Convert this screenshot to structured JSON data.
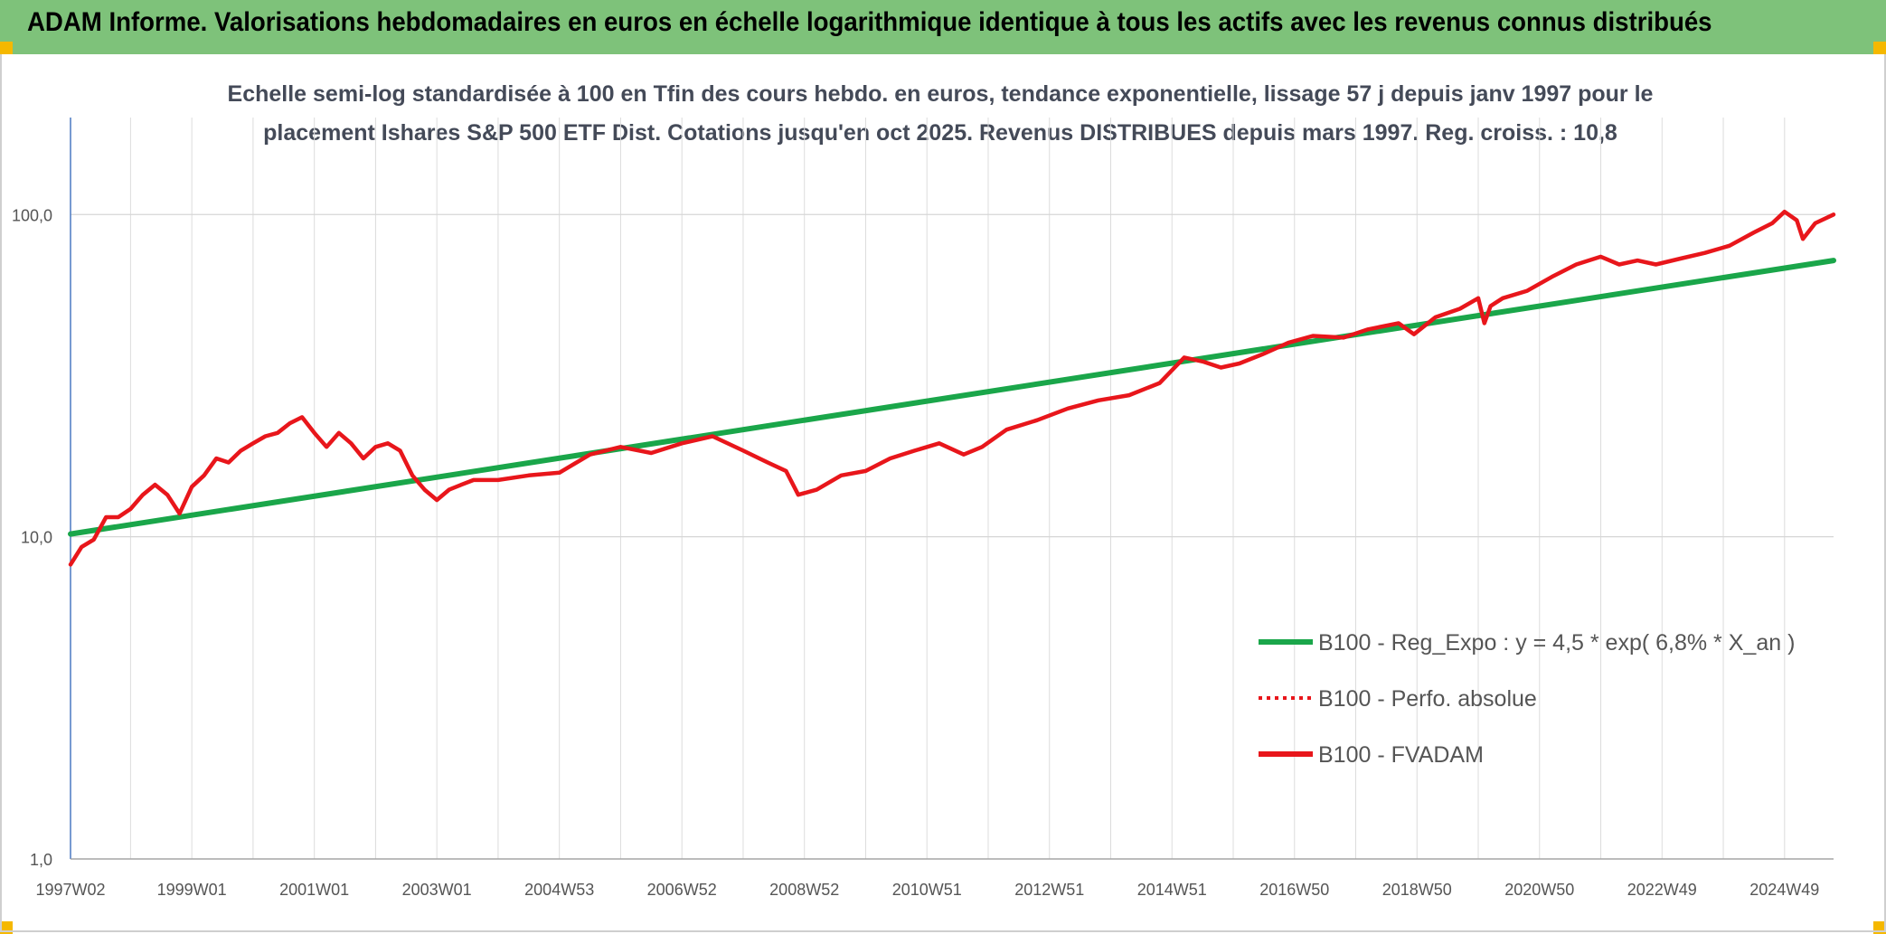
{
  "header": {
    "title": "ADAM Informe. Valorisations hebdomadaires en euros en échelle logarithmique identique à tous les actifs avec les revenus connus distribués"
  },
  "chart_data": {
    "type": "line",
    "title_line1": "Echelle semi-log standardisée à 100 en Tfin des cours hebdo. en euros, tendance exponentielle, lissage 57 j depuis janv 1997 pour le",
    "title_line2": "placement Ishares S&P 500 ETF Dist. Cotations jusqu'en oct 2025. Revenus DISTRIBUES depuis mars 1997. Reg. croiss. : 10,8",
    "y_scale": "log",
    "ylim": [
      1,
      200
    ],
    "y_ticks": [
      1,
      10,
      100
    ],
    "y_tick_labels": [
      "1,0",
      "10,0",
      "100,0"
    ],
    "x_range": [
      1997.02,
      2025.8
    ],
    "x_tick_labels": [
      "1997W02",
      "1999W01",
      "2001W01",
      "2003W01",
      "2004W53",
      "2006W52",
      "2008W52",
      "2010W51",
      "2012W51",
      "2014W51",
      "2016W50",
      "2018W50",
      "2020W50",
      "2022W49",
      "2024W49"
    ],
    "x_tick_years": [
      1997.02,
      1999.0,
      2001.0,
      2003.0,
      2005.0,
      2007.0,
      2009.0,
      2011.0,
      2013.0,
      2015.0,
      2017.0,
      2019.0,
      2021.0,
      2023.0,
      2025.0
    ],
    "grid": true,
    "legend_position": "bottom-right",
    "series": [
      {
        "name": "B100 - Reg_Expo : y = 4,5 * exp( 6,8% *  X_an )",
        "color": "#1aa64a",
        "style": "solid",
        "x": [
          1997.02,
          2025.8
        ],
        "y": [
          10.2,
          72
        ]
      },
      {
        "name": "B100 - Perfo. absolue",
        "color": "#e8161b",
        "style": "dotted",
        "x": [],
        "y": []
      },
      {
        "name": "B100 - FVADAM",
        "color": "#e8161b",
        "style": "solid",
        "x": [
          1997.02,
          1997.2,
          1997.4,
          1997.6,
          1997.8,
          1998.0,
          1998.2,
          1998.4,
          1998.6,
          1998.8,
          1999.0,
          1999.2,
          1999.4,
          1999.6,
          1999.8,
          2000.0,
          2000.2,
          2000.4,
          2000.6,
          2000.8,
          2001.0,
          2001.2,
          2001.4,
          2001.6,
          2001.8,
          2002.0,
          2002.2,
          2002.4,
          2002.6,
          2002.8,
          2003.0,
          2003.2,
          2003.4,
          2003.6,
          2003.8,
          2004.0,
          2004.5,
          2005.0,
          2005.5,
          2006.0,
          2006.5,
          2007.0,
          2007.5,
          2008.0,
          2008.4,
          2008.7,
          2008.9,
          2009.2,
          2009.6,
          2010.0,
          2010.4,
          2010.8,
          2011.2,
          2011.6,
          2011.9,
          2012.3,
          2012.8,
          2013.3,
          2013.8,
          2014.3,
          2014.8,
          2015.2,
          2015.5,
          2015.8,
          2016.1,
          2016.5,
          2016.9,
          2017.3,
          2017.8,
          2018.2,
          2018.7,
          2018.95,
          2019.3,
          2019.7,
          2020.0,
          2020.1,
          2020.2,
          2020.4,
          2020.8,
          2021.2,
          2021.6,
          2022.0,
          2022.3,
          2022.6,
          2022.9,
          2023.3,
          2023.7,
          2024.1,
          2024.5,
          2024.8,
          2025.0,
          2025.2,
          2025.3,
          2025.5,
          2025.8
        ],
        "y": [
          8.2,
          9.3,
          9.8,
          11.5,
          11.5,
          12.2,
          13.5,
          14.5,
          13.5,
          11.8,
          14.3,
          15.5,
          17.5,
          17.0,
          18.5,
          19.5,
          20.5,
          21.0,
          22.5,
          23.5,
          21.0,
          19.0,
          21.0,
          19.5,
          17.5,
          19.0,
          19.5,
          18.5,
          15.5,
          14.0,
          13.0,
          14.0,
          14.5,
          15.0,
          15.0,
          15.0,
          15.5,
          15.8,
          18.0,
          19.0,
          18.2,
          19.5,
          20.5,
          18.5,
          17.0,
          16.0,
          13.5,
          14.0,
          15.5,
          16.0,
          17.5,
          18.5,
          19.5,
          18.0,
          19.0,
          21.5,
          23.0,
          25.0,
          26.5,
          27.5,
          30.0,
          36.0,
          35.0,
          33.5,
          34.5,
          37.0,
          40.0,
          42.0,
          41.5,
          44.0,
          46.0,
          42.5,
          48.0,
          51.0,
          55.0,
          46.0,
          52.0,
          55.0,
          58.0,
          64.0,
          70.0,
          74.0,
          70.0,
          72.0,
          70.0,
          73.0,
          76.0,
          80.0,
          88.0,
          94.0,
          102.0,
          96.0,
          84.0,
          94.0,
          100.0
        ]
      }
    ]
  }
}
